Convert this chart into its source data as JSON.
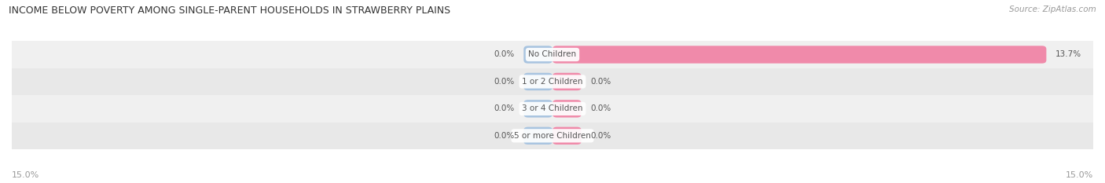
{
  "title": "INCOME BELOW POVERTY AMONG SINGLE-PARENT HOUSEHOLDS IN STRAWBERRY PLAINS",
  "source": "Source: ZipAtlas.com",
  "categories": [
    "No Children",
    "1 or 2 Children",
    "3 or 4 Children",
    "5 or more Children"
  ],
  "single_father_values": [
    0.0,
    0.0,
    0.0,
    0.0
  ],
  "single_mother_values": [
    13.7,
    0.0,
    0.0,
    0.0
  ],
  "max_val": 15.0,
  "father_color": "#a8c4e0",
  "mother_color": "#f08aaa",
  "row_bg_colors": [
    "#f0f0f0",
    "#e8e8e8"
  ],
  "label_color": "#555555",
  "title_color": "#333333",
  "axis_label_color": "#999999",
  "figsize": [
    14.06,
    2.33
  ],
  "dpi": 100,
  "bar_height": 0.65,
  "min_stub": 0.8
}
